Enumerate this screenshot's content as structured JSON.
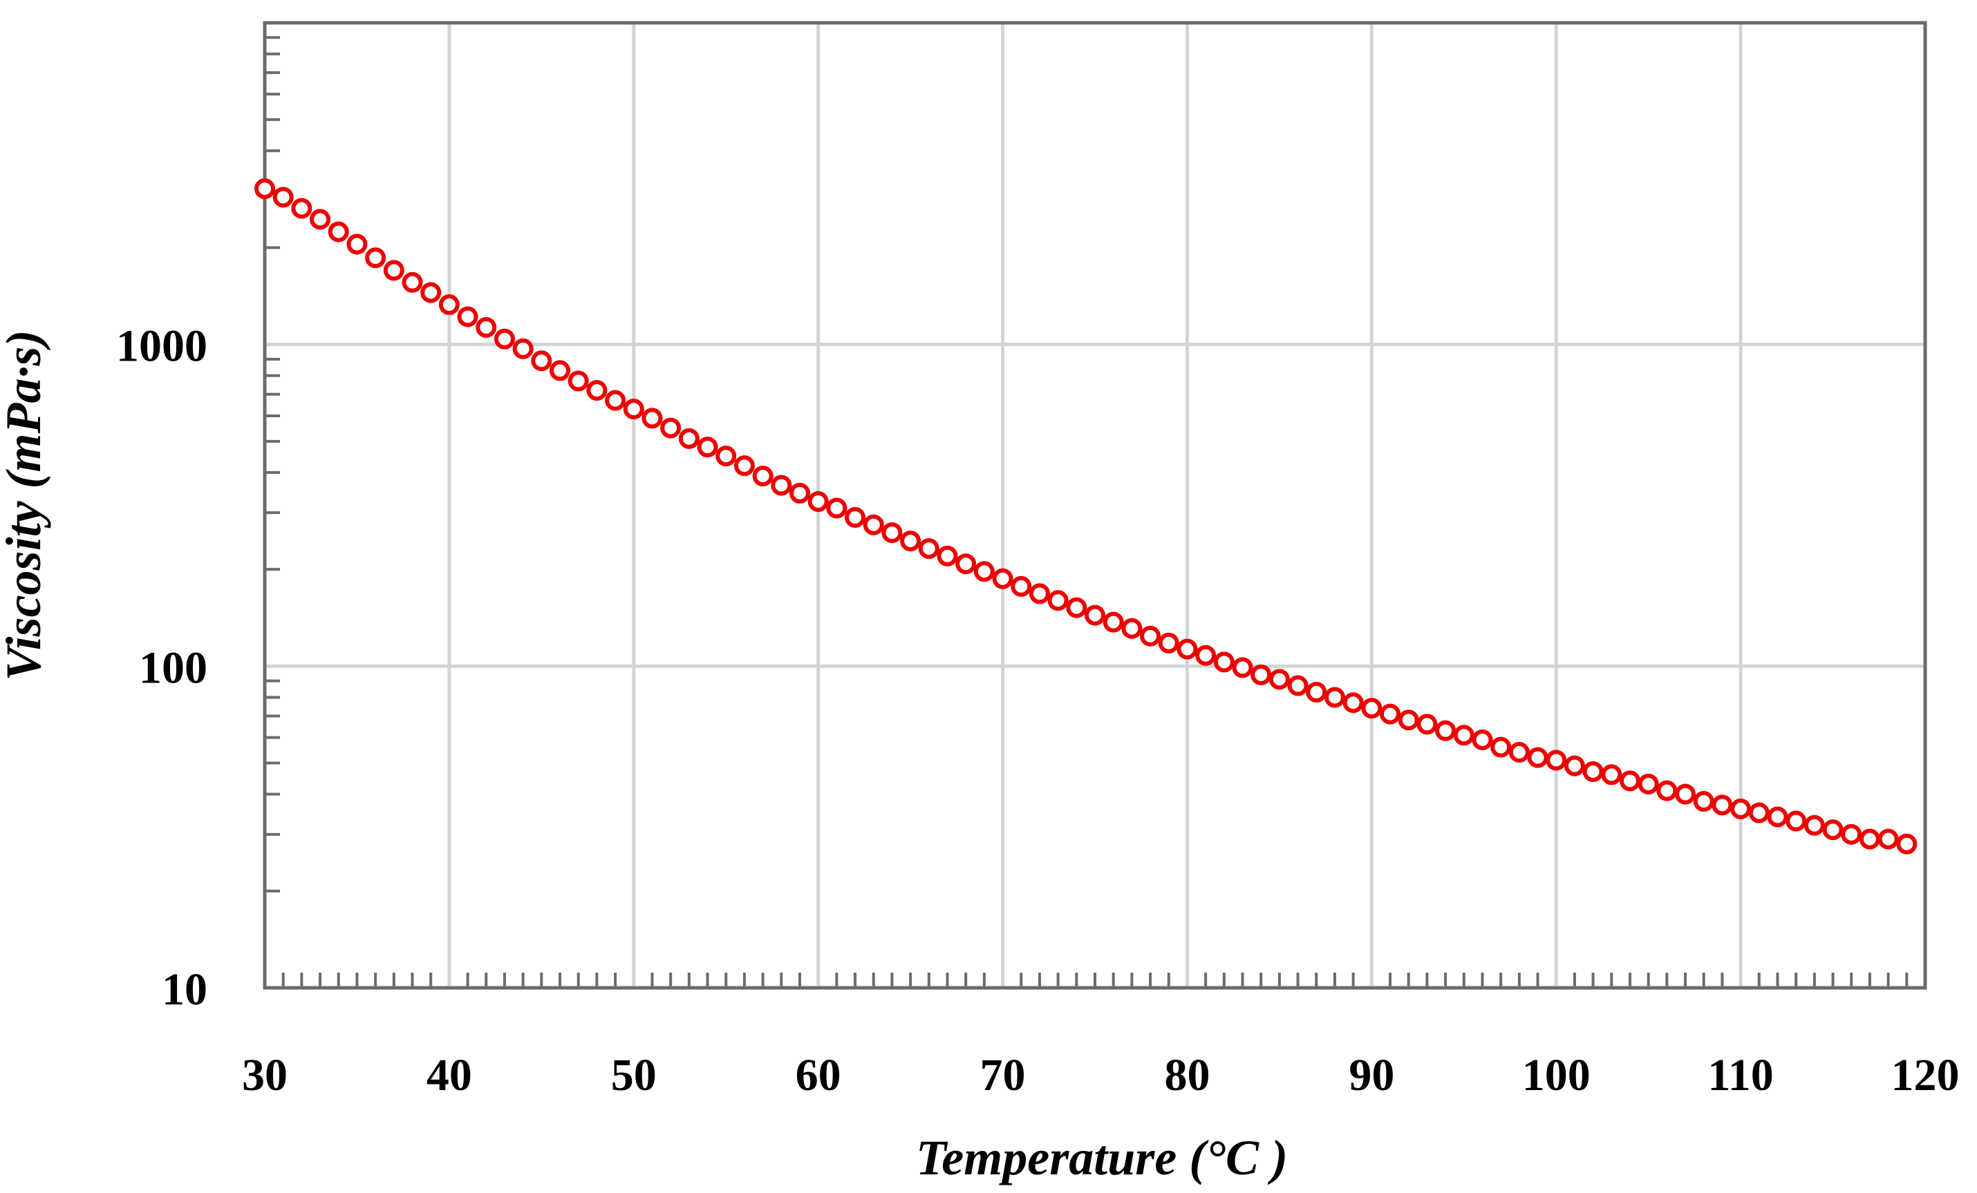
{
  "chart_data": {
    "type": "scatter",
    "title": "",
    "xlabel": "Temperature (°C )",
    "ylabel": "Viscosity (mPa·s)",
    "xlim": [
      30,
      120
    ],
    "ylim": [
      10,
      10000
    ],
    "yscale": "log",
    "grid": true,
    "marker": "open-circle",
    "marker_color": "#ee0000",
    "x_ticks": [
      "30",
      "40",
      "50",
      "60",
      "70",
      "80",
      "90",
      "100",
      "110",
      "120"
    ],
    "y_ticks": [
      "10",
      "100",
      "1000"
    ],
    "series": [
      {
        "name": "Viscosity",
        "x": [
          30,
          31,
          32,
          33,
          34,
          35,
          36,
          37,
          38,
          39,
          40,
          41,
          42,
          43,
          44,
          45,
          46,
          47,
          48,
          49,
          50,
          51,
          52,
          53,
          54,
          55,
          56,
          57,
          58,
          59,
          60,
          61,
          62,
          63,
          64,
          65,
          66,
          67,
          68,
          69,
          70,
          71,
          72,
          73,
          74,
          75,
          76,
          77,
          78,
          79,
          80,
          81,
          82,
          83,
          84,
          85,
          86,
          87,
          88,
          89,
          90,
          91,
          92,
          93,
          94,
          95,
          96,
          97,
          98,
          99,
          100,
          101,
          102,
          103,
          104,
          105,
          106,
          107,
          108,
          109,
          110,
          111,
          112,
          113,
          114,
          115,
          116,
          117,
          118,
          119
        ],
        "y": [
          3050,
          2870,
          2650,
          2450,
          2240,
          2050,
          1860,
          1700,
          1560,
          1450,
          1330,
          1220,
          1130,
          1040,
          970,
          890,
          830,
          770,
          720,
          670,
          630,
          590,
          550,
          510,
          480,
          450,
          420,
          390,
          365,
          345,
          325,
          310,
          290,
          275,
          260,
          245,
          232,
          220,
          208,
          197,
          187,
          177,
          168,
          160,
          152,
          144,
          137,
          131,
          124,
          118,
          113,
          108,
          103,
          99,
          94,
          91,
          87,
          83,
          80,
          77,
          74,
          71,
          68,
          66,
          63,
          61,
          59,
          56,
          54,
          52,
          51,
          49,
          47,
          46,
          44,
          43,
          41,
          40,
          38,
          37,
          36,
          35,
          34,
          33,
          32,
          31,
          30,
          29,
          29,
          28
        ]
      }
    ]
  }
}
